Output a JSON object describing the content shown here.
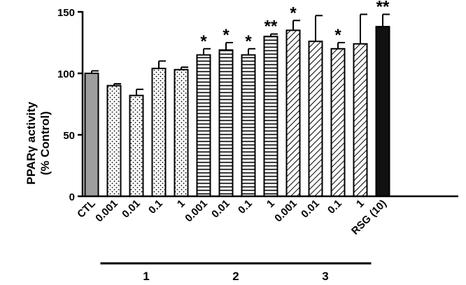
{
  "chart_data": {
    "type": "bar",
    "ylabel_line1": "PPARγ activity",
    "ylabel_line2": "(% Control)",
    "ylim": [
      0,
      150
    ],
    "yticks": [
      0,
      50,
      100,
      150
    ],
    "categories": [
      "CTL",
      "0.001",
      "0.01",
      "0.1",
      "1",
      "0.001",
      "0.01",
      "0.1",
      "1",
      "0.001",
      "0.01",
      "0.1",
      "1",
      "RSG (10)"
    ],
    "values": [
      100,
      90,
      82,
      104,
      103,
      115,
      119,
      115,
      130,
      135,
      126,
      120,
      124,
      138
    ],
    "errors": [
      2,
      1.5,
      5,
      6,
      2,
      5,
      6,
      5,
      2,
      8,
      21,
      5,
      24,
      10
    ],
    "fills": [
      "gray",
      "dots",
      "dots",
      "dots",
      "dots",
      "hlines",
      "hlines",
      "hlines",
      "hlines",
      "diag",
      "diag",
      "diag",
      "diag",
      "black"
    ],
    "significance": [
      "",
      "",
      "",
      "",
      "",
      "*",
      "*",
      "*",
      "**",
      "*",
      "",
      "*",
      "",
      "**"
    ],
    "groups": [
      {
        "label": "1",
        "first": 1,
        "last": 4
      },
      {
        "label": "2",
        "first": 5,
        "last": 8
      },
      {
        "label": "3",
        "first": 9,
        "last": 12
      }
    ],
    "colors": {
      "bar_stroke": "#000000",
      "ctl_fill": "#9e9e9e",
      "rsg_fill": "#111111"
    }
  }
}
